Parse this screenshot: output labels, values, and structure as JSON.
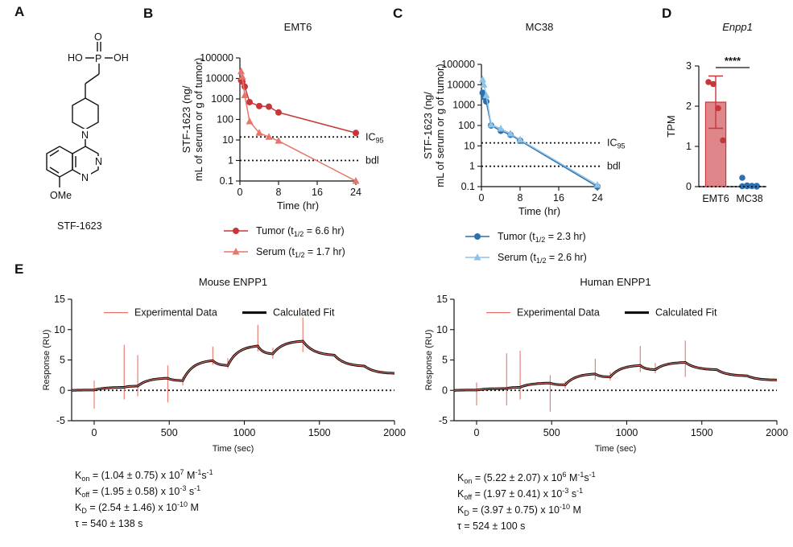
{
  "panels": {
    "a": "A",
    "b": "B",
    "c": "C",
    "d": "D",
    "e": "E"
  },
  "structure": {
    "atoms": {
      "o_dbl": "O",
      "ho": "HO",
      "p": "P",
      "oh": "OH",
      "n_pip": "N",
      "n_q1": "N",
      "n_q2": "N",
      "ome": "OMe"
    },
    "name": "STF-1623"
  },
  "chart_data": [
    {
      "id": "B",
      "type": "line",
      "title": "EMT6",
      "xlabel": "Time (hr)",
      "ylabel_lines": [
        "STF-1623 (ng/",
        "mL of serum or g of tumor)"
      ],
      "yscale": "log",
      "ylim": [
        0.1,
        100000
      ],
      "xlim": [
        0,
        24
      ],
      "x_ticks": [
        "0",
        "8",
        "16",
        "24"
      ],
      "y_ticks": [
        "0.1",
        "1",
        "10",
        "100",
        "1000",
        "10000",
        "100000"
      ],
      "series": [
        {
          "name": "Tumor (t1/2 = 6.6 hr)",
          "label_main": "Tumor (t",
          "label_sub": "1/2",
          "label_tail": " = 6.6 hr)",
          "color": "#c8363a",
          "marker": "circle",
          "x": [
            0.25,
            0.5,
            1,
            2,
            4,
            6,
            8,
            24
          ],
          "y": [
            8000,
            7000,
            4000,
            700,
            450,
            420,
            220,
            22
          ]
        },
        {
          "name": "Serum (t1/2 = 1.7 hr)",
          "label_main": "Serum (t",
          "label_sub": "1/2",
          "label_tail": " = 1.7 hr)",
          "color": "#e8746a",
          "marker": "triangle",
          "x": [
            0.25,
            0.5,
            1,
            2,
            4,
            6,
            8,
            24
          ],
          "y": [
            22000,
            12000,
            1500,
            80,
            22,
            14,
            9,
            0.1
          ]
        }
      ],
      "ref_lines": [
        {
          "label_main": "IC",
          "label_sub": "95",
          "y": 14
        },
        {
          "label_main": "bdl",
          "label_sub": "",
          "y": 1
        }
      ]
    },
    {
      "id": "C",
      "type": "line",
      "title": "MC38",
      "xlabel": "Time (hr)",
      "ylabel_lines": [
        "STF-1623 (ng/",
        "mL of serum or g of tumor)"
      ],
      "yscale": "log",
      "ylim": [
        0.1,
        100000
      ],
      "xlim": [
        0,
        24
      ],
      "x_ticks": [
        "0",
        "8",
        "16",
        "24"
      ],
      "y_ticks": [
        "0.1",
        "1",
        "10",
        "100",
        "1000",
        "10000",
        "100000"
      ],
      "series": [
        {
          "name": "Tumor (t1/2 = 2.3 hr)",
          "label_main": "Tumor (t",
          "label_sub": "1/2",
          "label_tail": " = 2.3 hr)",
          "color": "#2e6fb0",
          "marker": "circle",
          "x": [
            0.25,
            0.5,
            1,
            2,
            4,
            6,
            8,
            24
          ],
          "y": [
            4000,
            2500,
            1500,
            100,
            55,
            35,
            18,
            0.1
          ]
        },
        {
          "name": "Serum (t1/2 = 2.6 hr)",
          "label_main": "Serum (t",
          "label_sub": "1/2",
          "label_tail": " = 2.6 hr)",
          "color": "#8fc3e6",
          "marker": "triangle",
          "x": [
            0.25,
            0.5,
            1,
            2,
            4,
            6,
            8,
            24
          ],
          "y": [
            18000,
            10000,
            3000,
            110,
            70,
            40,
            20,
            0.12
          ]
        }
      ],
      "ref_lines": [
        {
          "label_main": "IC",
          "label_sub": "95",
          "y": 14
        },
        {
          "label_main": "bdl",
          "label_sub": "",
          "y": 1
        }
      ]
    },
    {
      "id": "D",
      "type": "bar",
      "title": "Enpp1",
      "ylabel": "TPM",
      "ylim": [
        0,
        3
      ],
      "y_ticks": [
        "0",
        "1",
        "2",
        "3"
      ],
      "categories": [
        "EMT6",
        "MC38"
      ],
      "values": [
        2.1,
        0.02
      ],
      "errors": [
        0.65,
        0.02
      ],
      "colors": [
        "#c8363a",
        "#2e6fb0"
      ],
      "points": [
        [
          2.6,
          2.55,
          1.95,
          1.15
        ],
        [
          0.22,
          0.03,
          0.02,
          0.02,
          0.01,
          0.01,
          0.01,
          0.0
        ]
      ],
      "significance": "****"
    },
    {
      "id": "E1",
      "type": "line",
      "title": "Mouse ENPP1",
      "xlabel": "Time (sec)",
      "ylabel": "Response (RU)",
      "xlim": [
        -150,
        2000
      ],
      "ylim": [
        -5,
        15
      ],
      "x_ticks": [
        "0",
        "500",
        "1000",
        "1500",
        "2000"
      ],
      "y_ticks": [
        "-5",
        "0",
        "5",
        "10",
        "15"
      ],
      "legend": [
        "Experimental Data",
        "Calculated Fit"
      ],
      "series_colors": {
        "experimental": "#e8746a",
        "fit": "#000000"
      },
      "curve": {
        "x": [
          -150,
          0,
          200,
          290,
          490,
          590,
          790,
          890,
          1090,
          1190,
          1390,
          1600,
          1800,
          2000
        ],
        "y": [
          0,
          0.05,
          0.5,
          0.7,
          2.0,
          1.6,
          4.9,
          4.1,
          7.3,
          6.0,
          8.1,
          5.8,
          4.0,
          2.8
        ]
      },
      "spikes": [
        {
          "x": 0,
          "lo": -3,
          "hi": 1.6
        },
        {
          "x": 200,
          "lo": -1.5,
          "hi": 7.5
        },
        {
          "x": 290,
          "lo": -1,
          "hi": 5.8
        },
        {
          "x": 490,
          "lo": -2,
          "hi": 4.1
        },
        {
          "x": 590,
          "lo": 0.8,
          "hi": 2.2
        },
        {
          "x": 790,
          "lo": 4.2,
          "hi": 7.2
        },
        {
          "x": 890,
          "lo": 3.6,
          "hi": 5.3
        },
        {
          "x": 1090,
          "lo": 6.4,
          "hi": 10.8
        },
        {
          "x": 1190,
          "lo": 5.2,
          "hi": 7.0
        },
        {
          "x": 1390,
          "lo": 6.3,
          "hi": 12.0
        }
      ],
      "params": {
        "kon": "(1.04 ± 0.75) x 10",
        "kon_exp": "7",
        "koff": "(1.95 ± 0.58) x 10",
        "koff_exp": "-3",
        "kd": "(2.54 ± 1.46) x 10",
        "kd_exp": "-10",
        "tau": "τ = 540 ± 138 s"
      }
    },
    {
      "id": "E2",
      "type": "line",
      "title": "Human ENPP1",
      "xlabel": "Time (sec)",
      "ylabel": "Response (RU)",
      "xlim": [
        -150,
        2000
      ],
      "ylim": [
        -5,
        15
      ],
      "x_ticks": [
        "0",
        "500",
        "1000",
        "1500",
        "2000"
      ],
      "y_ticks": [
        "-5",
        "0",
        "5",
        "10",
        "15"
      ],
      "legend": [
        "Experimental Data",
        "Calculated Fit"
      ],
      "series_colors": {
        "experimental": "#e8746a",
        "fit": "#000000"
      },
      "curve": {
        "x": [
          -150,
          0,
          200,
          290,
          490,
          590,
          790,
          890,
          1090,
          1190,
          1390,
          1600,
          1800,
          2000
        ],
        "y": [
          0,
          0.05,
          0.3,
          0.5,
          1.2,
          0.9,
          2.7,
          2.2,
          4.1,
          3.4,
          4.6,
          3.4,
          2.4,
          1.7
        ]
      },
      "spikes": [
        {
          "x": 0,
          "lo": -2.5,
          "hi": 1.3
        },
        {
          "x": 200,
          "lo": -2.5,
          "hi": 6.1
        },
        {
          "x": 290,
          "lo": -1.5,
          "hi": 6.5
        },
        {
          "x": 490,
          "lo": -3.5,
          "hi": 2.5
        },
        {
          "x": 590,
          "lo": 0.3,
          "hi": 1.5
        },
        {
          "x": 790,
          "lo": 1.7,
          "hi": 5.2
        },
        {
          "x": 890,
          "lo": 1.6,
          "hi": 3.0
        },
        {
          "x": 1090,
          "lo": 3.0,
          "hi": 7.3
        },
        {
          "x": 1190,
          "lo": 2.8,
          "hi": 4.5
        },
        {
          "x": 1390,
          "lo": 2.2,
          "hi": 8.2
        }
      ],
      "params": {
        "kon": "(5.22 ± 2.07) x 10",
        "kon_exp": "6",
        "koff": "(1.97 ± 0.41) x 10",
        "koff_exp": "-3",
        "kd": "(3.97 ± 0.75) x 10",
        "kd_exp": "-10",
        "tau": "τ = 524 ± 100 s"
      }
    }
  ]
}
